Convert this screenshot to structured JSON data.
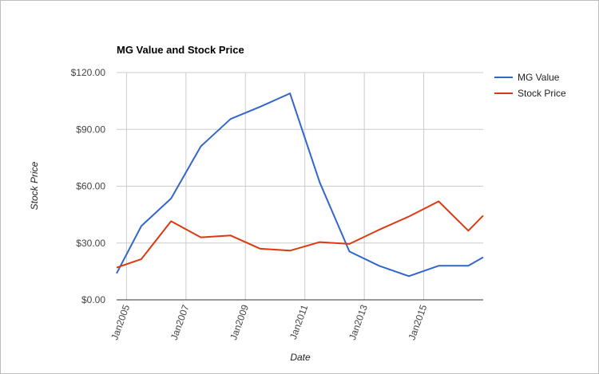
{
  "chart_data": {
    "type": "line",
    "title": "MG Value and Stock Price",
    "xlabel": "Date",
    "ylabel": "Stock Price",
    "y_ticks": [
      "$0.00",
      "$30.00",
      "$60.00",
      "$90.00",
      "$120.00"
    ],
    "y_tick_values": [
      0,
      30,
      60,
      90,
      120
    ],
    "ylim": [
      0,
      120
    ],
    "x_ticks": [
      "Jan2005",
      "Jan2007",
      "Jan2009",
      "Jan2011",
      "Jan2013",
      "Jan2015"
    ],
    "x_tick_values": [
      "2005-01",
      "2007-01",
      "2009-01",
      "2011-01",
      "2013-01",
      "2015-01"
    ],
    "xlim": [
      "2004-09",
      "2017-01"
    ],
    "grid": true,
    "legend_position": "right",
    "series": [
      {
        "name": "MG Value",
        "color": "#3366cc",
        "x": [
          "2004-09",
          "2005-07",
          "2006-07",
          "2007-07",
          "2008-07",
          "2009-07",
          "2010-07",
          "2011-07",
          "2012-07",
          "2013-07",
          "2014-07",
          "2015-07",
          "2016-07",
          "2017-01"
        ],
        "values": [
          14,
          39,
          53.5,
          81,
          95.5,
          102,
          109,
          62,
          25.5,
          18,
          12.5,
          18,
          18,
          22.5
        ]
      },
      {
        "name": "Stock Price",
        "color": "#dc3912",
        "x": [
          "2004-09",
          "2005-07",
          "2006-07",
          "2007-07",
          "2008-07",
          "2009-07",
          "2010-07",
          "2011-07",
          "2012-07",
          "2013-07",
          "2014-07",
          "2015-07",
          "2016-07",
          "2017-01"
        ],
        "values": [
          17,
          21.5,
          41.5,
          33,
          34,
          27,
          26,
          30.5,
          29.5,
          37,
          44,
          52,
          36.5,
          44.5
        ]
      }
    ]
  }
}
